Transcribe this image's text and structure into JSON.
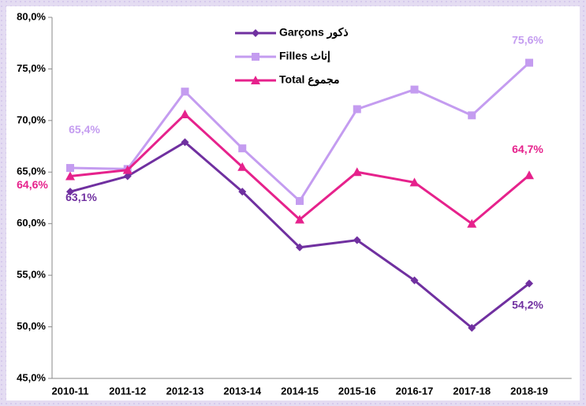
{
  "chart_data": {
    "type": "line",
    "categories": [
      "2010-11",
      "2011-12",
      "2012-13",
      "2013-14",
      "2014-15",
      "2015-16",
      "2016-17",
      "2017-18",
      "2018-19"
    ],
    "ylim": [
      45,
      80
    ],
    "yticks": [
      {
        "value": 45,
        "label": "45,0%"
      },
      {
        "value": 50,
        "label": "50,0%"
      },
      {
        "value": 55,
        "label": "55,0%"
      },
      {
        "value": 60,
        "label": "60,0%"
      },
      {
        "value": 65,
        "label": "65,0%"
      },
      {
        "value": 70,
        "label": "70,0%"
      },
      {
        "value": 75,
        "label": "75,0%"
      },
      {
        "value": 80,
        "label": "80,0%"
      }
    ],
    "series": [
      {
        "name": "Garçons ذكور",
        "color": "#7030a0",
        "marker": "diamond",
        "values": [
          63.1,
          64.6,
          67.9,
          63.1,
          57.7,
          58.4,
          54.5,
          49.9,
          54.2
        ],
        "value_labels": [
          "63,1%",
          null,
          null,
          null,
          null,
          null,
          null,
          null,
          "54,2%"
        ]
      },
      {
        "name": "Filles إناث",
        "color": "#c49cf0",
        "marker": "square",
        "values": [
          65.4,
          65.3,
          72.8,
          67.3,
          62.2,
          71.1,
          73.0,
          70.5,
          75.6
        ],
        "value_labels": [
          "65,4%",
          null,
          null,
          null,
          null,
          null,
          null,
          null,
          "75,6%"
        ]
      },
      {
        "name": "Total مجموع",
        "color": "#e6228c",
        "marker": "triangle",
        "values": [
          64.6,
          65.2,
          70.6,
          65.5,
          60.4,
          65.0,
          64.0,
          60.0,
          64.7
        ],
        "value_labels": [
          "64,6%",
          null,
          null,
          null,
          null,
          null,
          null,
          null,
          "64,7%"
        ]
      }
    ]
  }
}
